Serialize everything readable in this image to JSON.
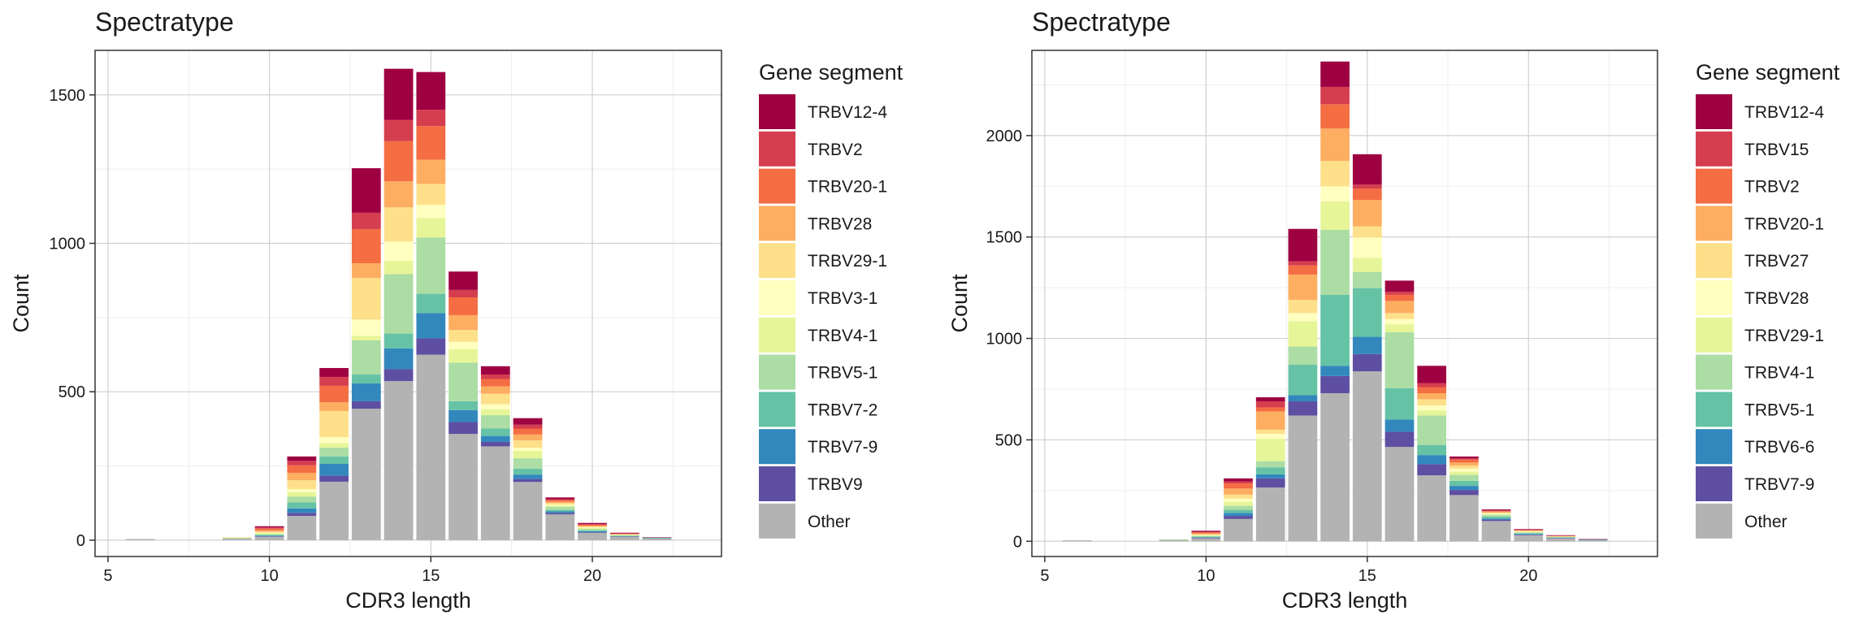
{
  "chart_data": [
    {
      "type": "bar",
      "stacked": true,
      "title": "Spectratype",
      "xlabel": "CDR3 length",
      "ylabel": "Count",
      "xlim": [
        4.6,
        24.0
      ],
      "ylim": [
        -55,
        1650
      ],
      "x_ticks": [
        "5",
        "10",
        "15",
        "20"
      ],
      "y_ticks": [
        "0",
        "500",
        "1000",
        "1500"
      ],
      "grid": true,
      "legend_title": "Gene segment",
      "legend_position": "right",
      "legend": [
        "TRBV12-4",
        "TRBV2",
        "TRBV20-1",
        "TRBV28",
        "TRBV29-1",
        "TRBV3-1",
        "TRBV4-1",
        "TRBV5-1",
        "TRBV7-2",
        "TRBV7-9",
        "TRBV9",
        "Other"
      ],
      "stack_order": [
        "Other",
        "TRBV9",
        "TRBV7-9",
        "TRBV7-2",
        "TRBV5-1",
        "TRBV4-1",
        "TRBV3-1",
        "TRBV29-1",
        "TRBV28",
        "TRBV20-1",
        "TRBV2",
        "TRBV12-4"
      ],
      "x": [
        6,
        9,
        10,
        11,
        12,
        13,
        14,
        15,
        16,
        17,
        18,
        19,
        20,
        21,
        22
      ],
      "series": [
        {
          "name": "TRBV12-4",
          "values": [
            0,
            0,
            4,
            15,
            30,
            150,
            172,
            127,
            62,
            28,
            22,
            6,
            4,
            2,
            1
          ]
        },
        {
          "name": "TRBV2",
          "values": [
            0,
            0,
            4,
            15,
            30,
            55,
            72,
            55,
            25,
            15,
            13,
            3,
            2,
            1,
            0
          ]
        },
        {
          "name": "TRBV20-1",
          "values": [
            0,
            0,
            6,
            25,
            55,
            115,
            135,
            113,
            60,
            25,
            20,
            5,
            3,
            1,
            0
          ]
        },
        {
          "name": "TRBV28",
          "values": [
            0,
            0,
            4,
            25,
            30,
            50,
            88,
            82,
            50,
            25,
            20,
            5,
            3,
            1,
            0
          ]
        },
        {
          "name": "TRBV29-1",
          "values": [
            0,
            2,
            4,
            30,
            88,
            140,
            115,
            70,
            40,
            35,
            25,
            5,
            3,
            1,
            0
          ]
        },
        {
          "name": "TRBV3-1",
          "values": [
            0,
            0,
            2,
            10,
            20,
            55,
            65,
            45,
            25,
            17,
            10,
            3,
            2,
            1,
            0
          ]
        },
        {
          "name": "TRBV4-1",
          "values": [
            0,
            1,
            3,
            15,
            15,
            15,
            45,
            65,
            45,
            20,
            25,
            5,
            3,
            1,
            0
          ]
        },
        {
          "name": "TRBV5-1",
          "values": [
            0,
            0,
            2,
            20,
            30,
            115,
            200,
            190,
            130,
            45,
            35,
            10,
            5,
            2,
            1
          ]
        },
        {
          "name": "TRBV7-2",
          "values": [
            0,
            1,
            3,
            20,
            25,
            30,
            50,
            65,
            30,
            25,
            20,
            5,
            3,
            1,
            1
          ]
        },
        {
          "name": "TRBV7-9",
          "values": [
            0,
            0,
            2,
            15,
            40,
            60,
            70,
            85,
            40,
            20,
            15,
            5,
            3,
            1,
            1
          ]
        },
        {
          "name": "TRBV9",
          "values": [
            0,
            0,
            1,
            10,
            20,
            25,
            40,
            55,
            40,
            15,
            10,
            5,
            2,
            1,
            0
          ]
        },
        {
          "name": "Other",
          "values": [
            4,
            6,
            12,
            82,
            197,
            443,
            536,
            625,
            358,
            316,
            196,
            87,
            25,
            12,
            6
          ]
        }
      ]
    },
    {
      "type": "bar",
      "stacked": true,
      "title": "Spectratype",
      "xlabel": "CDR3 length",
      "ylabel": "Count",
      "xlim": [
        4.6,
        24.0
      ],
      "ylim": [
        -75,
        2420
      ],
      "x_ticks": [
        "5",
        "10",
        "15",
        "20"
      ],
      "y_ticks": [
        "0",
        "500",
        "1000",
        "1500",
        "2000"
      ],
      "grid": true,
      "legend_title": "Gene segment",
      "legend_position": "right",
      "legend": [
        "TRBV12-4",
        "TRBV15",
        "TRBV2",
        "TRBV20-1",
        "TRBV27",
        "TRBV28",
        "TRBV29-1",
        "TRBV4-1",
        "TRBV5-1",
        "TRBV6-6",
        "TRBV7-9",
        "Other"
      ],
      "stack_order": [
        "Other",
        "TRBV7-9",
        "TRBV6-6",
        "TRBV5-1",
        "TRBV4-1",
        "TRBV29-1",
        "TRBV28",
        "TRBV27",
        "TRBV20-1",
        "TRBV2",
        "TRBV15",
        "TRBV12-4"
      ],
      "x": [
        6,
        9,
        10,
        11,
        12,
        13,
        14,
        15,
        16,
        17,
        18,
        19,
        20,
        21,
        22
      ],
      "series": [
        {
          "name": "TRBV12-4",
          "values": [
            0,
            0,
            5,
            15,
            20,
            160,
            125,
            150,
            55,
            85,
            10,
            5,
            3,
            2,
            1
          ]
        },
        {
          "name": "TRBV15",
          "values": [
            0,
            0,
            3,
            10,
            30,
            20,
            85,
            20,
            15,
            20,
            5,
            3,
            1,
            1,
            0
          ]
        },
        {
          "name": "TRBV2",
          "values": [
            0,
            0,
            5,
            25,
            20,
            45,
            120,
            55,
            30,
            30,
            15,
            3,
            2,
            1,
            0
          ]
        },
        {
          "name": "TRBV20-1",
          "values": [
            0,
            0,
            5,
            30,
            90,
            125,
            160,
            130,
            60,
            30,
            15,
            5,
            3,
            1,
            0
          ]
        },
        {
          "name": "TRBV27",
          "values": [
            0,
            0,
            3,
            20,
            20,
            65,
            125,
            55,
            30,
            30,
            15,
            3,
            2,
            1,
            0
          ]
        },
        {
          "name": "TRBV28",
          "values": [
            0,
            0,
            2,
            15,
            25,
            40,
            75,
            100,
            25,
            25,
            15,
            3,
            2,
            1,
            0
          ]
        },
        {
          "name": "TRBV29-1",
          "values": [
            0,
            1,
            3,
            20,
            110,
            125,
            140,
            70,
            40,
            25,
            15,
            5,
            3,
            1,
            0
          ]
        },
        {
          "name": "TRBV4-1",
          "values": [
            0,
            1,
            3,
            20,
            30,
            90,
            320,
            80,
            275,
            145,
            30,
            8,
            4,
            2,
            1
          ]
        },
        {
          "name": "TRBV5-1",
          "values": [
            0,
            1,
            3,
            15,
            35,
            150,
            350,
            240,
            155,
            50,
            25,
            10,
            4,
            2,
            1
          ]
        },
        {
          "name": "TRBV6-6",
          "values": [
            0,
            0,
            2,
            15,
            20,
            30,
            50,
            85,
            60,
            45,
            20,
            5,
            3,
            1,
            1
          ]
        },
        {
          "name": "TRBV7-9",
          "values": [
            0,
            0,
            3,
            15,
            45,
            70,
            85,
            85,
            75,
            55,
            25,
            7,
            3,
            2,
            1
          ]
        },
        {
          "name": "Other",
          "values": [
            5,
            7,
            15,
            110,
            265,
            620,
            730,
            838,
            465,
            325,
            228,
            100,
            30,
            15,
            6
          ]
        }
      ]
    }
  ],
  "colors": {
    "panel_border": "#333333",
    "grid_major": "#d0d0d0",
    "grid_minor": "#eeeeee",
    "palette": [
      "#9E0142",
      "#D53E4F",
      "#F46D43",
      "#FDAE61",
      "#FEE08B",
      "#FFFFBF",
      "#E6F598",
      "#ABDDA4",
      "#66C2A5",
      "#3288BD",
      "#5E4FA2",
      "#B3B3B3"
    ]
  }
}
